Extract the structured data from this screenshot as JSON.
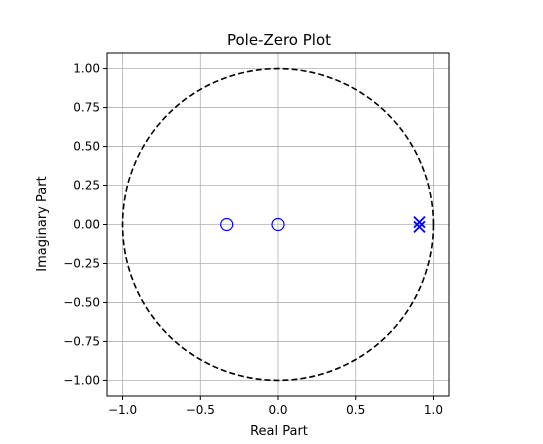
{
  "chart_data": {
    "type": "scatter",
    "title": "Pole-Zero Plot",
    "xlabel": "Real Part",
    "ylabel": "Imaginary Part",
    "xlim": [
      -1.1,
      1.1
    ],
    "ylim": [
      -1.1,
      1.1
    ],
    "grid": true,
    "x_ticks": [
      -1.0,
      -0.5,
      0.0,
      0.5,
      1.0
    ],
    "x_tick_labels": [
      "−1.0",
      "−0.5",
      "0.0",
      "0.5",
      "1.0"
    ],
    "y_ticks": [
      1.0,
      0.75,
      0.5,
      0.25,
      0.0,
      -0.25,
      -0.5,
      -0.75,
      -1.0
    ],
    "y_tick_labels": [
      "1.00",
      "0.75",
      "0.50",
      "0.25",
      "0.00",
      "−0.25",
      "−0.50",
      "−0.75",
      "−1.00"
    ],
    "unit_circle": {
      "radius": 1.0,
      "style": "dashed",
      "color": "#000000"
    },
    "zeros": [
      {
        "real": -0.33,
        "imag": 0.0
      },
      {
        "real": 0.0,
        "imag": 0.0
      }
    ],
    "poles": [
      {
        "real": 0.91,
        "imag": 0.015
      },
      {
        "real": 0.91,
        "imag": -0.015
      }
    ],
    "marker_color": "#0000ff",
    "grid_color": "#b0b0b0"
  }
}
